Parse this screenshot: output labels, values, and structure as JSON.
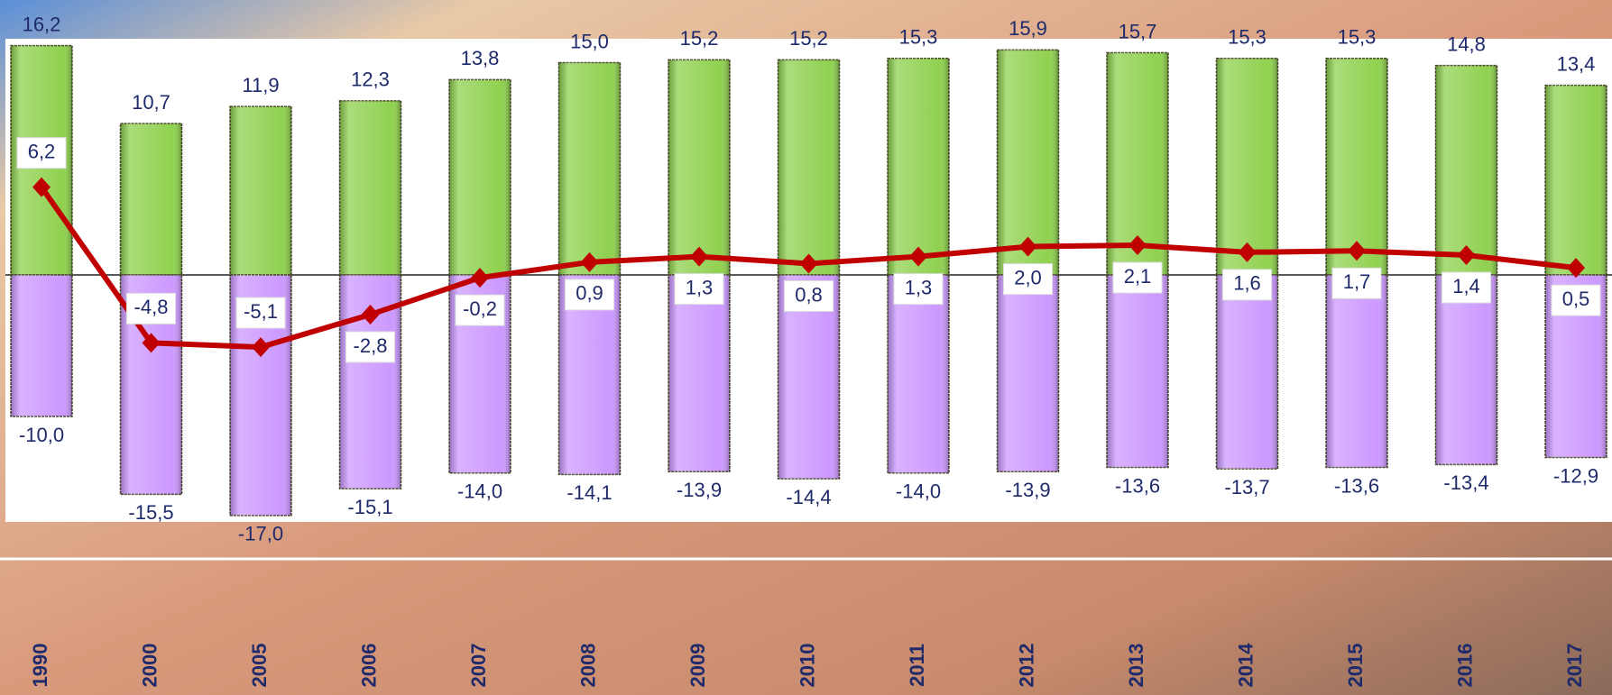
{
  "chart_data": {
    "type": "bar",
    "categories": [
      "1990",
      "2000",
      "2005",
      "2006",
      "2007",
      "2008",
      "2009",
      "2010",
      "2011",
      "2012",
      "2013",
      "2014",
      "2015",
      "2016",
      "2017"
    ],
    "series": [
      {
        "color": "#8fd14f",
        "values": [
          16.2,
          10.7,
          11.9,
          12.3,
          13.8,
          15.0,
          15.2,
          15.2,
          15.3,
          15.9,
          15.7,
          15.3,
          15.3,
          14.8,
          13.4
        ],
        "value_labels": [
          "16,2",
          "10,7",
          "11,9",
          "12,3",
          "13,8",
          "15,0",
          "15,2",
          "15,2",
          "15,3",
          "15,9",
          "15,7",
          "15,3",
          "15,3",
          "14,8",
          "13,4"
        ]
      },
      {
        "color": "#cc99ff",
        "values": [
          -10.0,
          -15.5,
          -17.0,
          -15.1,
          -14.0,
          -14.1,
          -13.9,
          -14.4,
          -14.0,
          -13.9,
          -13.6,
          -13.7,
          -13.6,
          -13.4,
          -12.9
        ],
        "value_labels": [
          "-10,0",
          "-15,5",
          "-17,0",
          "-15,1",
          "-14,0",
          "-14,1",
          "-13,9",
          "-14,4",
          "-14,0",
          "-13,9",
          "-13,6",
          "-13,7",
          "-13,6",
          "-13,4",
          "-12,9"
        ]
      },
      {
        "type": "line",
        "color": "#c00000",
        "values": [
          6.2,
          -4.8,
          -5.1,
          -2.8,
          -0.2,
          0.9,
          1.3,
          0.8,
          1.3,
          2.0,
          2.1,
          1.6,
          1.7,
          1.4,
          0.5
        ],
        "value_labels": [
          "6,2",
          "-4,8",
          "-5,1",
          "-2,8",
          "-0,2",
          "0,9",
          "1,3",
          "0,8",
          "1,3",
          "2,0",
          "2,1",
          "1,6",
          "1,7",
          "1,4",
          "0,5"
        ]
      }
    ]
  }
}
